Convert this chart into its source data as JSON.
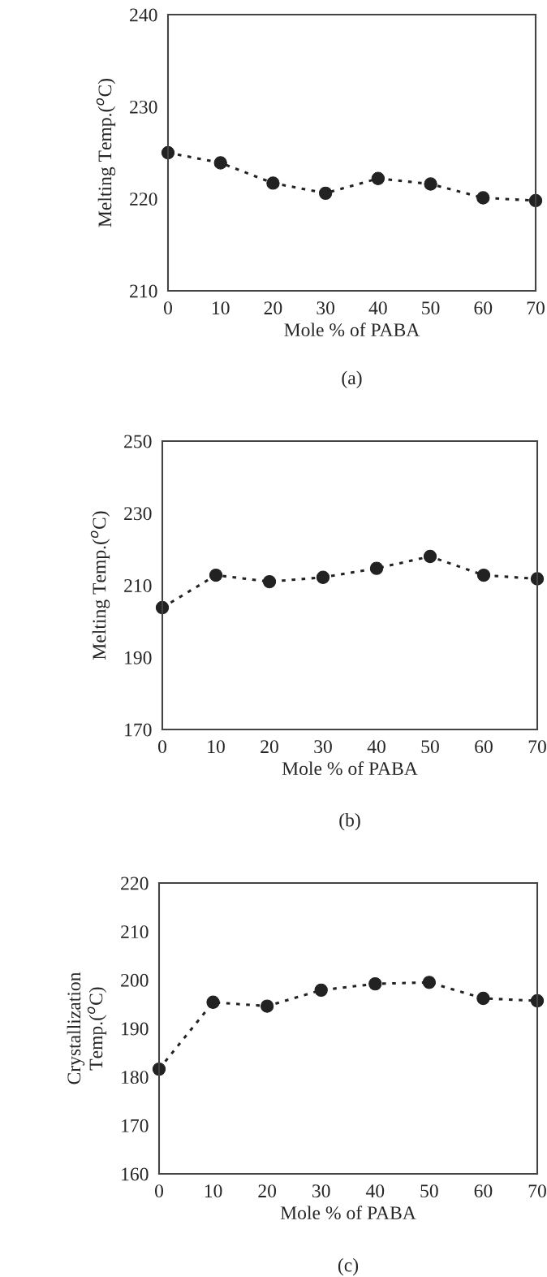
{
  "chart_data": [
    {
      "type": "line",
      "xlabel": "Mole % of PABA",
      "ylabel": "Melting Temp.($^{o}$C)",
      "annotations": [
        "(a)"
      ],
      "x": [
        0,
        10,
        20,
        30,
        40,
        50,
        60,
        70
      ],
      "series": [
        {
          "color": "#222222",
          "values": [
            225.0,
            223.9,
            221.7,
            220.6,
            222.2,
            221.6,
            220.1,
            219.8
          ]
        }
      ],
      "xlim": [
        0,
        70
      ],
      "xticks": [
        0,
        10,
        20,
        30,
        40,
        50,
        60,
        70
      ],
      "ylim": [
        210,
        240
      ],
      "yticks": [
        210,
        220,
        230,
        240
      ],
      "marker": "circle",
      "line_style": "dotted",
      "grid": false,
      "legend": false
    },
    {
      "type": "line",
      "xlabel": "Mole % of PABA",
      "ylabel": "Melting Temp.($^{o}$C)",
      "annotations": [
        "(b)"
      ],
      "x": [
        0,
        10,
        20,
        30,
        40,
        50,
        60,
        70
      ],
      "series": [
        {
          "color": "#222222",
          "values": [
            203.8,
            212.8,
            211.0,
            212.2,
            214.7,
            218.0,
            212.8,
            211.8
          ]
        }
      ],
      "xlim": [
        0,
        70
      ],
      "xticks": [
        0,
        10,
        20,
        30,
        40,
        50,
        60,
        70
      ],
      "ylim": [
        170,
        250
      ],
      "yticks": [
        170,
        190,
        210,
        230,
        250
      ],
      "marker": "circle",
      "line_style": "dotted",
      "grid": false,
      "legend": false
    },
    {
      "type": "line",
      "xlabel": "Mole % of PABA",
      "ylabel": "Crystallization\nTemp.($^{o}$C)",
      "annotations": [
        "(c)"
      ],
      "x": [
        0,
        10,
        20,
        30,
        40,
        50,
        60,
        70
      ],
      "series": [
        {
          "color": "#222222",
          "values": [
            181.6,
            195.4,
            194.6,
            197.9,
            199.2,
            199.5,
            196.2,
            195.7
          ]
        }
      ],
      "xlim": [
        0,
        70
      ],
      "xticks": [
        0,
        10,
        20,
        30,
        40,
        50,
        60,
        70
      ],
      "ylim": [
        160,
        220
      ],
      "yticks": [
        160,
        170,
        180,
        190,
        200,
        210,
        220
      ],
      "marker": "circle",
      "line_style": "dotted",
      "grid": false,
      "legend": false
    }
  ]
}
